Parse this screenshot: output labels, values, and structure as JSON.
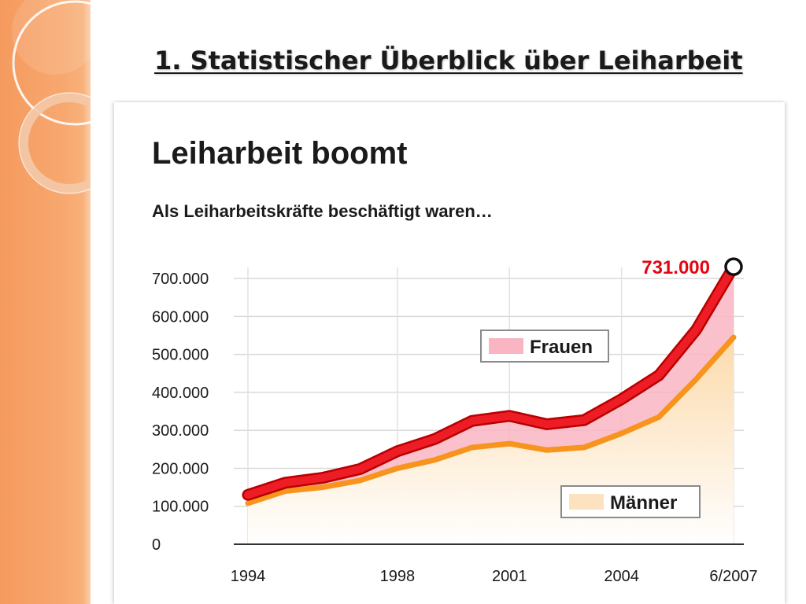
{
  "slide": {
    "title": "1. Statistischer Überblick über Leiharbeit"
  },
  "colors": {
    "sidebar": "#f7a86f",
    "total_line": "#ee1c24",
    "total_line_dark": "#b80000",
    "women_fill": "#f9b5c2",
    "men_line": "#f7941d",
    "men_fill": "#fde2bf",
    "highlight_label": "#e30613"
  },
  "chart_data": {
    "type": "area",
    "title": "Leiharbeit boomt",
    "subtitle": "Als Leiharbeitskräfte beschäftigt waren…",
    "x": [
      "1994",
      "1995",
      "1996",
      "1997",
      "1998",
      "1999",
      "2000",
      "2001",
      "2002",
      "2003",
      "2004",
      "2005",
      "2006",
      "6/2007"
    ],
    "x_tick_labels": [
      "1994",
      "1998",
      "2001",
      "2004",
      "6/2007"
    ],
    "series": [
      {
        "name": "Männer",
        "values": [
          108000,
          140000,
          150000,
          168000,
          200000,
          222000,
          255000,
          265000,
          248000,
          255000,
          292000,
          335000,
          435000,
          545000
        ]
      },
      {
        "name": "Frauen",
        "values": [
          22000,
          22000,
          25000,
          30000,
          45000,
          55000,
          70000,
          73000,
          68000,
          72000,
          90000,
          110000,
          130000,
          186000
        ]
      }
    ],
    "total_values": [
      130000,
      162000,
      175000,
      198000,
      245000,
      277000,
      325000,
      338000,
      316000,
      327000,
      382000,
      445000,
      565000,
      731000
    ],
    "yticks": [
      0,
      100000,
      200000,
      300000,
      400000,
      500000,
      600000,
      700000
    ],
    "ytick_labels": [
      "0",
      "100.000",
      "200.000",
      "300.000",
      "400.000",
      "500.000",
      "600.000",
      "700.000"
    ],
    "ylim": [
      0,
      750000
    ],
    "annotation": {
      "text": "731.000",
      "x": "6/2007",
      "y": 731000
    },
    "legend": [
      {
        "label": "Frauen",
        "swatch": "women_fill"
      },
      {
        "label": "Männer",
        "swatch": "men_fill"
      }
    ],
    "grid": true,
    "stacked": true
  }
}
